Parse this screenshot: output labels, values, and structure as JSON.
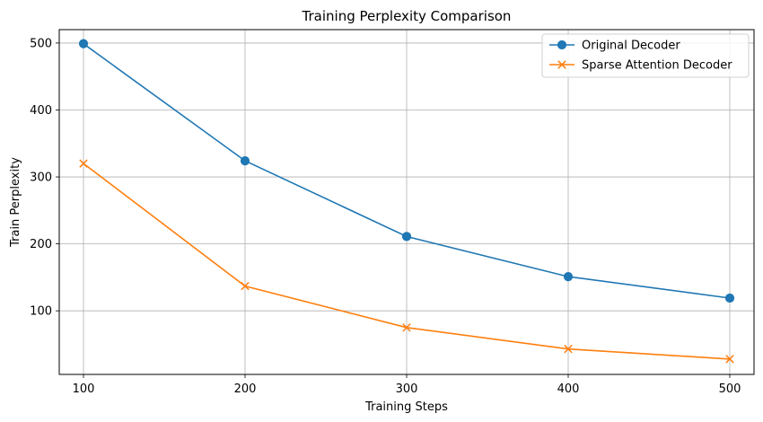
{
  "chart_data": {
    "type": "line",
    "title": "Training Perplexity Comparison",
    "xlabel": "Training Steps",
    "ylabel": "Train Perplexity",
    "x": [
      100,
      200,
      300,
      400,
      500
    ],
    "xlim": [
      85,
      515
    ],
    "ylim": [
      5,
      520
    ],
    "xticks": [
      100,
      200,
      300,
      400,
      500
    ],
    "yticks": [
      100,
      200,
      300,
      400,
      500
    ],
    "grid": true,
    "legend_position": "top-right",
    "series": [
      {
        "name": "Original Decoder",
        "marker": "circle",
        "color": "#1f77b4",
        "values": [
          499,
          324,
          211,
          151,
          119
        ]
      },
      {
        "name": "Sparse Attention Decoder",
        "marker": "x",
        "color": "#ff7f0e",
        "values": [
          320,
          137,
          75,
          43,
          28
        ]
      }
    ]
  }
}
